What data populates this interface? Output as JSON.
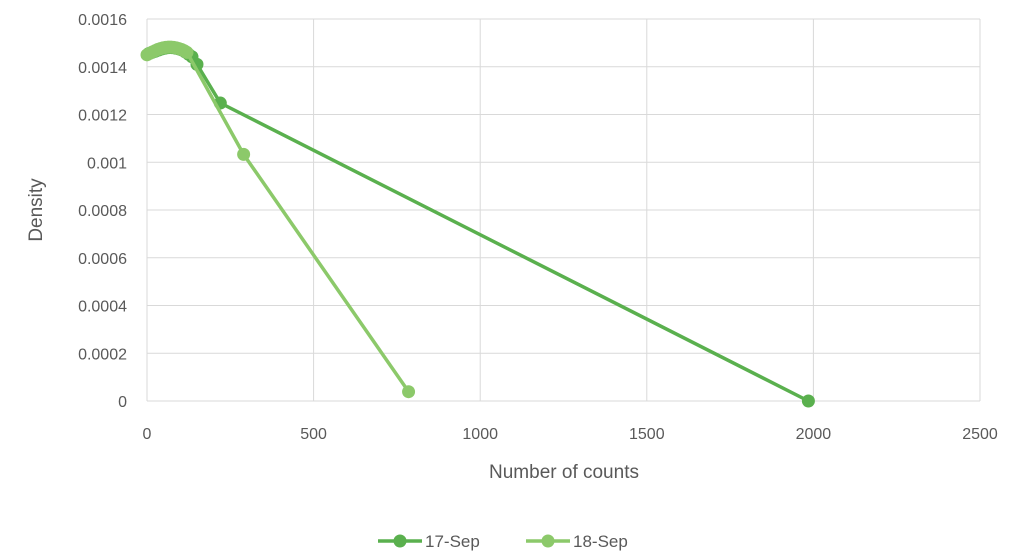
{
  "chart_data": {
    "type": "scatter",
    "title": "",
    "xlabel": "Number of counts",
    "ylabel": "Density",
    "xlim": [
      0,
      2500
    ],
    "ylim": [
      0,
      0.0016
    ],
    "x_ticks": [
      0,
      500,
      1000,
      1500,
      2000,
      2500
    ],
    "y_ticks": [
      0,
      0.0002,
      0.0004,
      0.0006,
      0.0008,
      0.001,
      0.0012,
      0.0014,
      0.0016
    ],
    "x_tick_labels": [
      "0",
      "500",
      "1000",
      "1500",
      "2000",
      "2500"
    ],
    "y_tick_labels": [
      "0",
      "0.0002",
      "0.0004",
      "0.0006",
      "0.0008",
      "0.001",
      "0.0012",
      "0.0014",
      "0.0016"
    ],
    "grid": true,
    "legend_position": "bottom",
    "series": [
      {
        "name": "17-Sep",
        "color": "#5ab04e",
        "x": [
          5,
          15,
          25,
          35,
          45,
          55,
          65,
          75,
          85,
          95,
          105,
          115,
          125,
          135,
          150,
          220,
          1985
        ],
        "y": [
          0.001455,
          0.00146,
          0.001465,
          0.00147,
          0.001475,
          0.001478,
          0.00148,
          0.00148,
          0.001478,
          0.001475,
          0.00147,
          0.001462,
          0.001452,
          0.001442,
          0.00141,
          0.001248,
          0.0
        ]
      },
      {
        "name": "18-Sep",
        "color": "#8cc96a",
        "x": [
          0,
          8,
          16,
          24,
          32,
          40,
          48,
          56,
          64,
          72,
          80,
          88,
          96,
          104,
          112,
          120,
          290,
          785
        ],
        "y": [
          0.00145,
          0.001456,
          0.001462,
          0.001467,
          0.001472,
          0.001476,
          0.001479,
          0.001481,
          0.001482,
          0.001482,
          0.001481,
          0.001479,
          0.001476,
          0.001472,
          0.001467,
          0.00146,
          0.001033,
          3.9e-05
        ]
      }
    ]
  }
}
